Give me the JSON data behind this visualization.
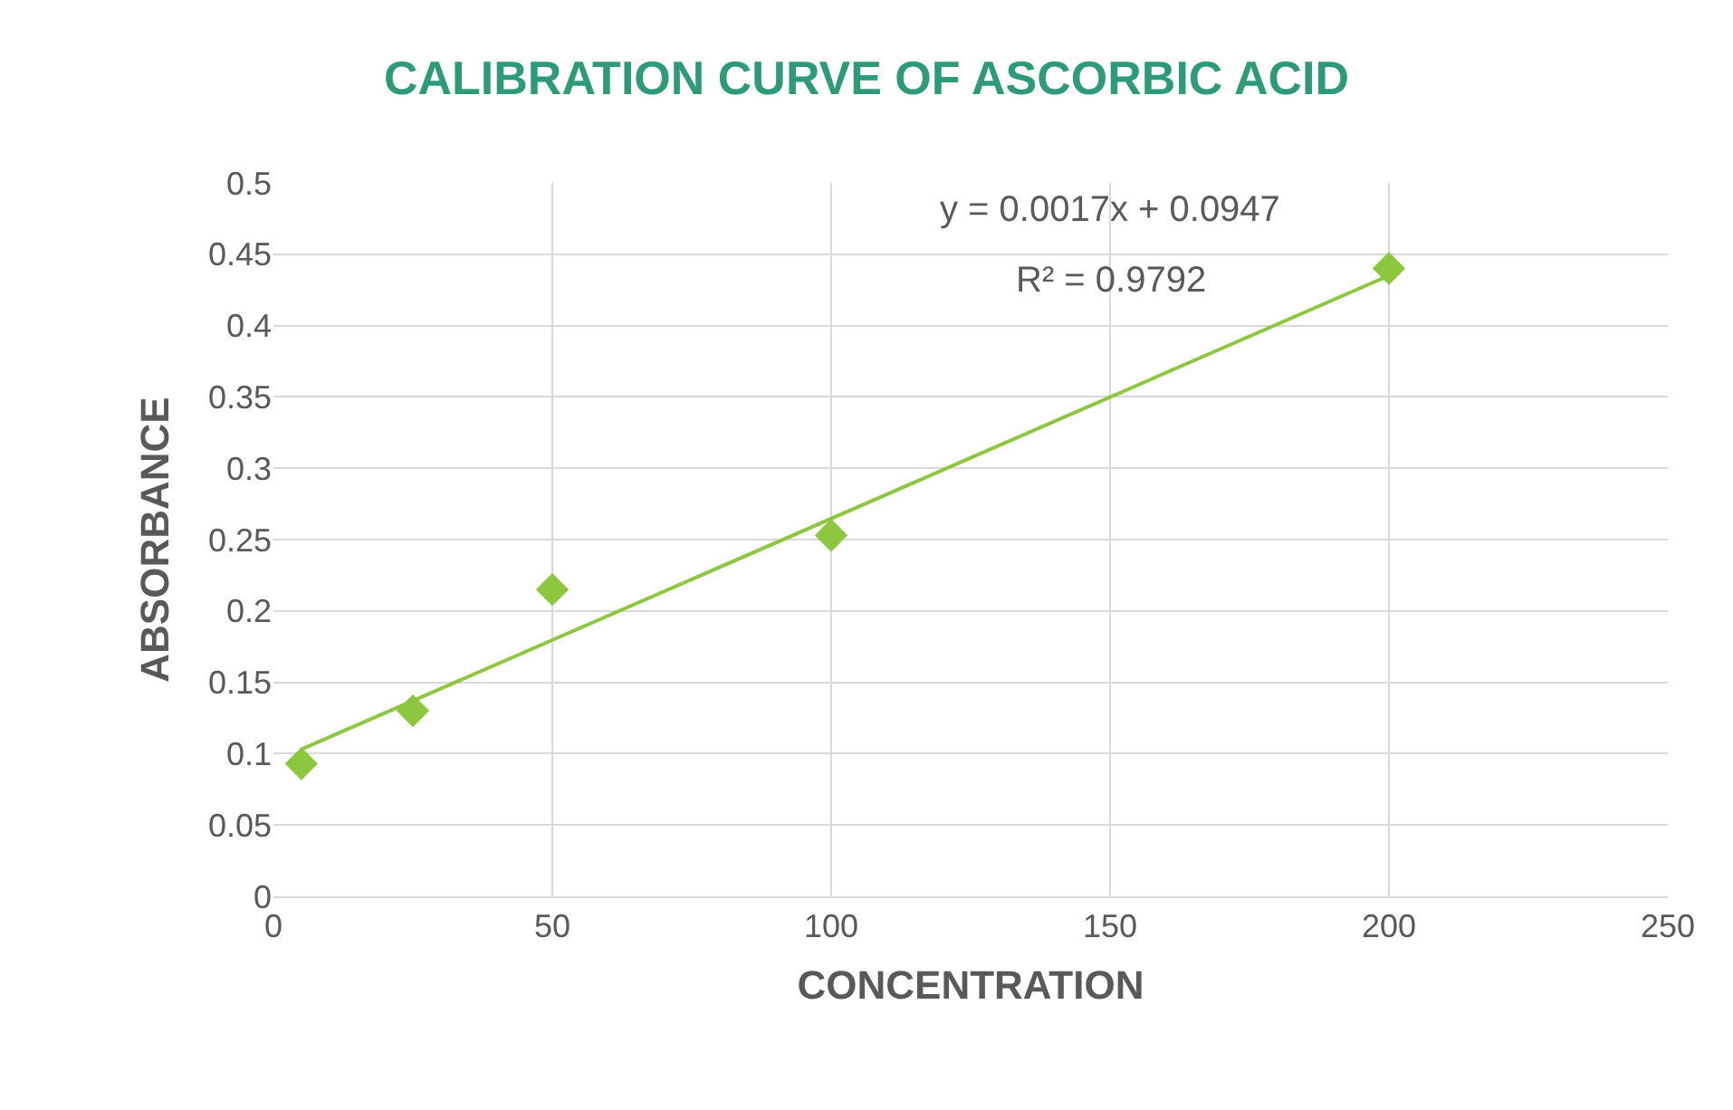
{
  "chart_data": {
    "type": "scatter",
    "title": "CALIBRATION CURVE OF ASCORBIC ACID",
    "xlabel": "CONCENTRATION",
    "ylabel": "ABSORBANCE",
    "series": [
      {
        "color": "#8dc63f",
        "marker": "diamond",
        "x": [
          5,
          25,
          50,
          100,
          200
        ],
        "values": [
          0.093,
          0.13,
          0.215,
          0.253,
          0.44
        ]
      },
      {
        "type": "line",
        "marker": "none",
        "color": "#8dc63f",
        "x": [
          5,
          200
        ],
        "values": [
          0.103,
          0.435
        ]
      }
    ],
    "annotations": [
      "y = 0.0017x + 0.0947",
      "R² = 0.9792"
    ],
    "xlim": [
      0,
      250
    ],
    "xticks": [
      0,
      50,
      100,
      150,
      200,
      250
    ],
    "ylim": [
      0,
      0.5
    ],
    "yticks": [
      0,
      0.05,
      0.1,
      0.15,
      0.2,
      0.25,
      0.3,
      0.35,
      0.4,
      0.45,
      0.5
    ],
    "grid": true
  }
}
